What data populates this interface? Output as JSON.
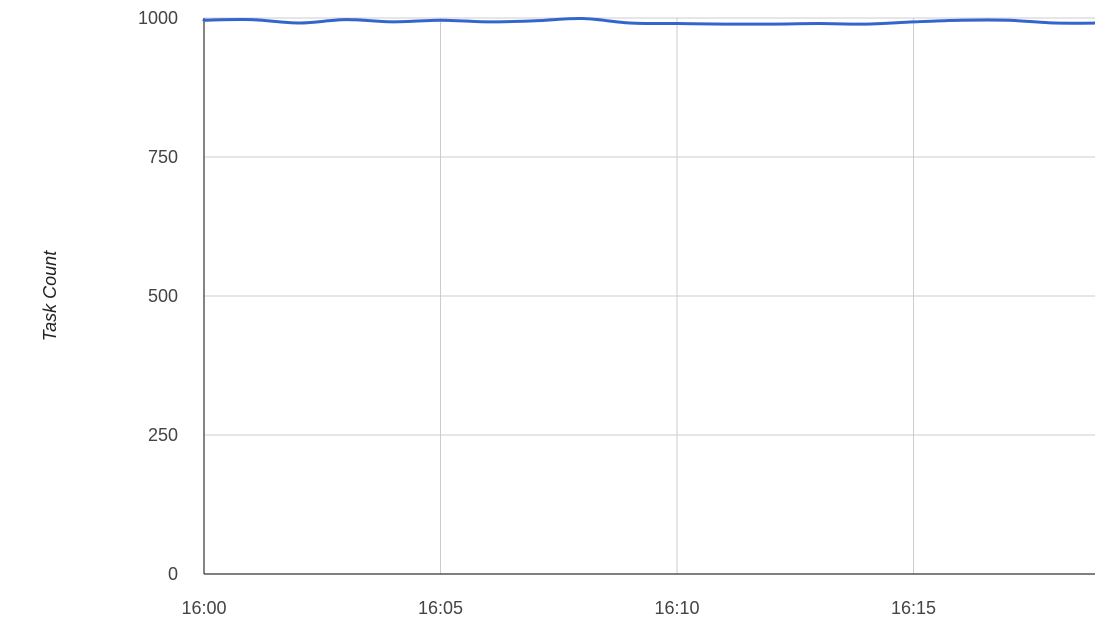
{
  "chart_data": {
    "type": "line",
    "title": "",
    "xlabel": "",
    "ylabel": "Task Count",
    "x_tick_labels": [
      "16:00",
      "16:05",
      "16:10",
      "16:15"
    ],
    "y_tick_labels": [
      "0",
      "250",
      "500",
      "750",
      "1000"
    ],
    "ylim": [
      0,
      1000
    ],
    "xlim": [
      "16:00",
      "16:19"
    ],
    "grid": true,
    "legend": "none",
    "series": [
      {
        "color": "#3366cc",
        "x": [
          "16:00",
          "16:01",
          "16:02",
          "16:03",
          "16:04",
          "16:05",
          "16:06",
          "16:07",
          "16:08",
          "16:09",
          "16:10",
          "16:11",
          "16:12",
          "16:13",
          "16:14",
          "16:15",
          "16:16",
          "16:17",
          "16:18",
          "16:19"
        ],
        "values": [
          996,
          997,
          991,
          997,
          993,
          996,
          993,
          995,
          999,
          991,
          990,
          989,
          989,
          990,
          989,
          993,
          996,
          996,
          991,
          991
        ]
      }
    ]
  }
}
